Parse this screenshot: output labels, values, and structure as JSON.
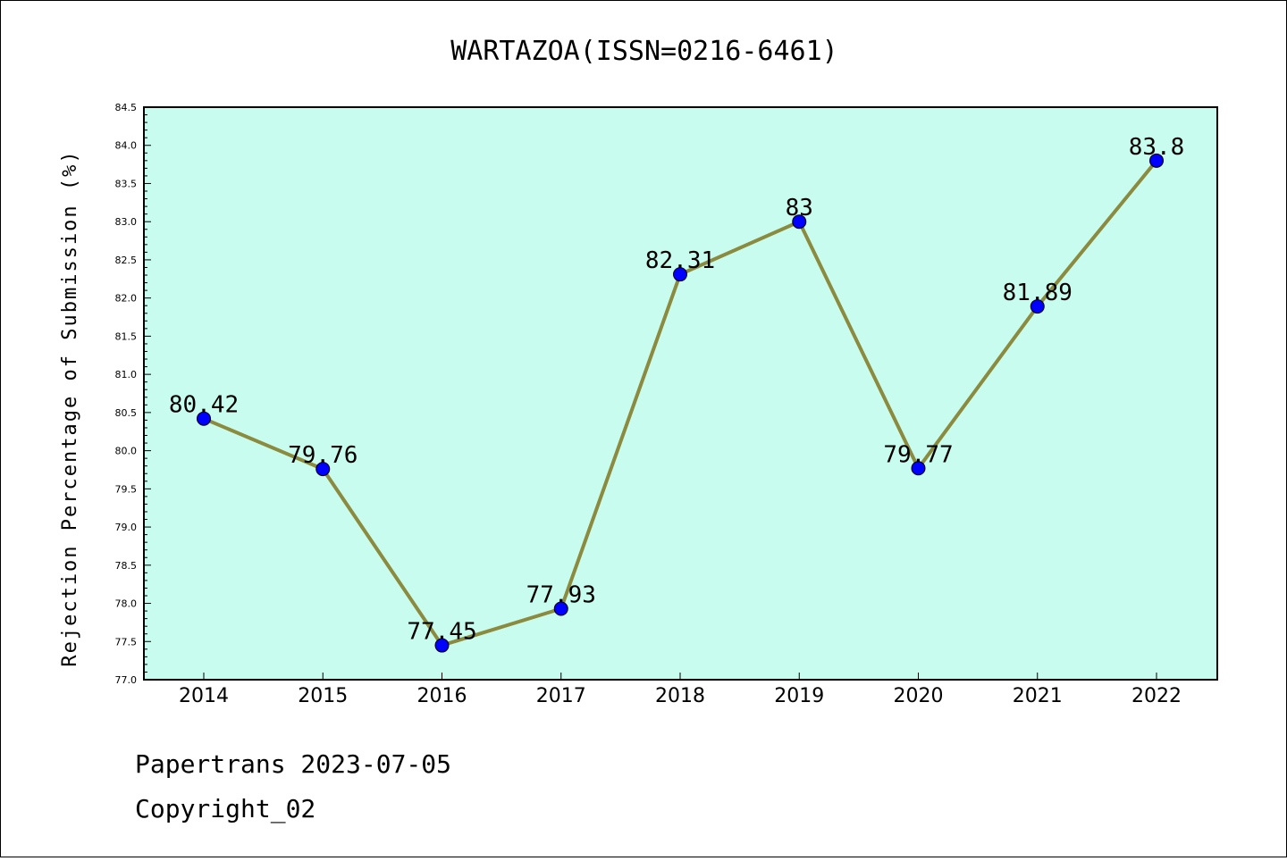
{
  "chart_data": {
    "type": "line",
    "title": "WARTAZOA(ISSN=0216-6461)",
    "xlabel": "",
    "ylabel": "Rejection Percentage of Submission (%)",
    "categories": [
      "2014",
      "2015",
      "2016",
      "2017",
      "2018",
      "2019",
      "2020",
      "2021",
      "2022"
    ],
    "series": [
      {
        "values": [
          80.42,
          79.76,
          77.45,
          77.93,
          82.31,
          83,
          79.77,
          81.89,
          83.8
        ]
      }
    ],
    "data_labels": [
      "80.42",
      "79.76",
      "77.45",
      "77.93",
      "82.31",
      "83",
      "79.77",
      "81.89",
      "83.8"
    ],
    "ylim": [
      77.0,
      84.5
    ],
    "yticks": [
      "77.0",
      "77.5",
      "78.0",
      "78.5",
      "79.0",
      "79.5",
      "80.0",
      "80.5",
      "81.0",
      "81.5",
      "82.0",
      "82.5",
      "83.0",
      "83.5",
      "84.0",
      "84.5"
    ],
    "grid": false,
    "colors": {
      "plot_background": "#c8fcee",
      "line": "#8b8a3e",
      "marker": "#0000ff"
    }
  },
  "footer": {
    "line1": "Papertrans 2023-07-05",
    "line2": "Copyright_02"
  }
}
